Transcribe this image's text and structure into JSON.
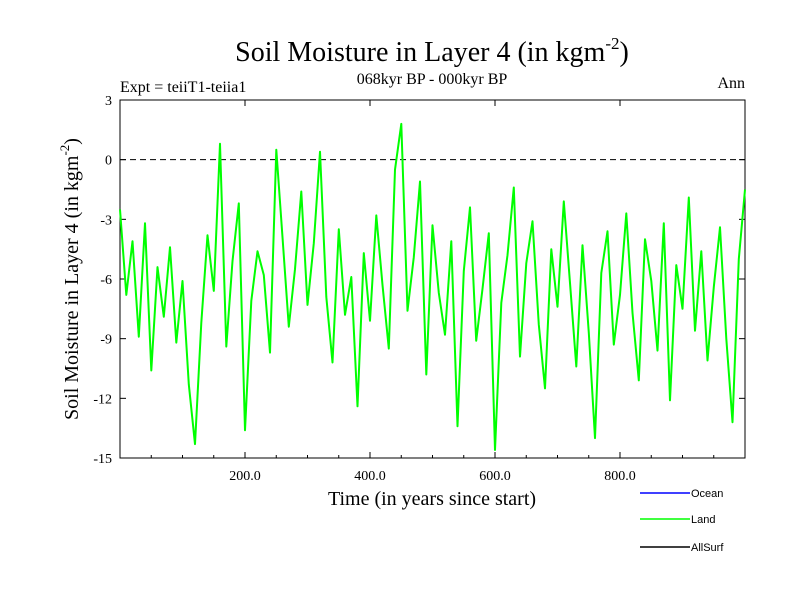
{
  "chart_data": {
    "type": "line",
    "title": "Soil Moisture in Layer 4 (in kgm",
    "title_sup": "-2",
    "title_close": ")",
    "subtitle": "068kyr BP - 000kyr BP",
    "expt_label": "Expt = teiiT1-teiia1",
    "season_label": "Ann",
    "xlabel": "Time (in years since start)",
    "ylabel": "Soil Moisture in Layer 4 (in kgm",
    "ylabel_sup": "-2",
    "ylabel_close": ")",
    "xlim": [
      0,
      1000
    ],
    "ylim": [
      -15,
      3
    ],
    "x_ticks": [
      200,
      400,
      600,
      800
    ],
    "x_tick_labels": [
      "200.0",
      "400.0",
      "600.0",
      "800.0"
    ],
    "y_ticks": [
      -15,
      -12,
      -9,
      -6,
      -3,
      0,
      3
    ],
    "y_tick_labels": [
      "-15",
      "-12",
      "-9",
      "-6",
      "-3",
      "0",
      "3"
    ],
    "zero_line": "dashed",
    "legend_position": "bottom-right",
    "series": [
      {
        "name": "Ocean",
        "color": "#0000ff",
        "values": []
      },
      {
        "name": "Land",
        "color": "#00ff00",
        "x": [
          0,
          10,
          20,
          30,
          40,
          50,
          60,
          70,
          80,
          90,
          100,
          110,
          120,
          130,
          140,
          150,
          160,
          170,
          180,
          190,
          200,
          210,
          220,
          230,
          240,
          250,
          260,
          270,
          280,
          290,
          300,
          310,
          320,
          330,
          340,
          350,
          360,
          370,
          380,
          390,
          400,
          410,
          420,
          430,
          440,
          450,
          460,
          470,
          480,
          490,
          500,
          510,
          520,
          530,
          540,
          550,
          560,
          570,
          580,
          590,
          600,
          610,
          620,
          630,
          640,
          650,
          660,
          670,
          680,
          690,
          700,
          710,
          720,
          730,
          740,
          750,
          760,
          770,
          780,
          790,
          800,
          810,
          820,
          830,
          840,
          850,
          860,
          870,
          880,
          890,
          900,
          910,
          920,
          930,
          940,
          950,
          960,
          970,
          980,
          990,
          1000
        ],
        "values": [
          -2.5,
          -6.8,
          -4.1,
          -8.9,
          -3.2,
          -10.6,
          -5.4,
          -7.9,
          -4.4,
          -9.2,
          -6.1,
          -11.3,
          -14.3,
          -8.2,
          -3.8,
          -6.6,
          0.8,
          -9.4,
          -5.1,
          -2.2,
          -13.6,
          -7.1,
          -4.6,
          -5.8,
          -9.7,
          0.5,
          -3.9,
          -8.4,
          -5.5,
          -1.6,
          -7.3,
          -4.2,
          0.4,
          -6.9,
          -10.2,
          -3.5,
          -7.8,
          -5.9,
          -12.4,
          -4.7,
          -8.1,
          -2.8,
          -6.3,
          -9.5,
          -0.5,
          1.8,
          -7.6,
          -4.9,
          -1.1,
          -10.8,
          -3.3,
          -6.7,
          -8.8,
          -4.1,
          -13.4,
          -5.6,
          -2.4,
          -9.1,
          -6.5,
          -3.7,
          -14.6,
          -7.2,
          -4.8,
          -1.4,
          -9.9,
          -5.2,
          -3.1,
          -8.3,
          -11.5,
          -4.5,
          -7.4,
          -2.1,
          -6.2,
          -10.4,
          -4.3,
          -8.7,
          -14.0,
          -5.7,
          -3.6,
          -9.3,
          -6.8,
          -2.7,
          -7.7,
          -11.1,
          -4.0,
          -6.1,
          -9.6,
          -3.2,
          -12.1,
          -5.3,
          -7.5,
          -1.9,
          -8.6,
          -4.6,
          -10.1,
          -6.4,
          -3.4,
          -9.0,
          -13.2,
          -5.0,
          -1.5
        ]
      },
      {
        "name": "AllSurf",
        "color": "#000000",
        "values": []
      }
    ]
  }
}
